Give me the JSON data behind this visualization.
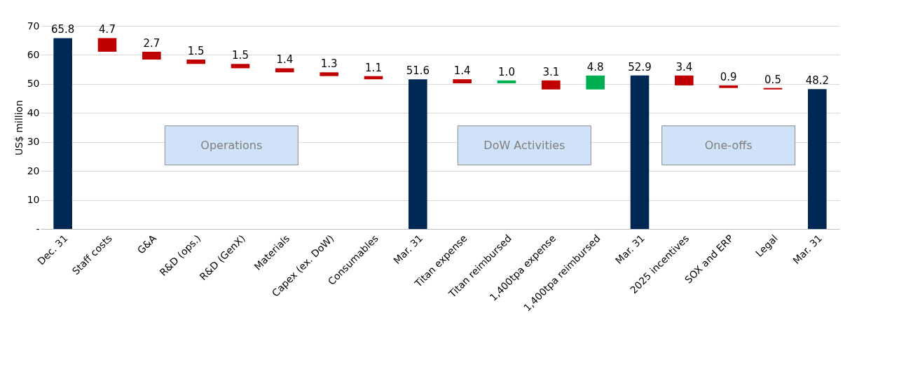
{
  "chart_data": {
    "type": "bar",
    "ylabel": "US$ million",
    "categories": [
      "Dec. 31",
      "Staff costs",
      "G&A",
      "R&D (ops.)",
      "R&D (GenX)",
      "Materials",
      "Capex (ex. DoW)",
      "Consumables",
      "Mar. 31",
      "Titan expense",
      "Titan reimbursed",
      "1,400tpa expense",
      "1,400tpa reimbursed",
      "Mar. 31",
      "2025 incentives",
      "SOX and ERP",
      "Legal",
      "Mar. 31"
    ],
    "values": [
      65.8,
      4.7,
      2.7,
      1.5,
      1.5,
      1.4,
      1.3,
      1.1,
      51.6,
      1.4,
      1.0,
      3.1,
      4.8,
      52.9,
      3.4,
      0.9,
      0.5,
      48.2
    ],
    "base": [
      0,
      61.1,
      58.4,
      56.9,
      55.4,
      54.0,
      52.7,
      51.6,
      0,
      50.2,
      50.2,
      48.1,
      48.1,
      0,
      49.5,
      48.6,
      48.1,
      0
    ],
    "colors": [
      "#002855",
      "#c00000",
      "#c00000",
      "#c00000",
      "#c00000",
      "#c00000",
      "#c00000",
      "#c00000",
      "#002855",
      "#c00000",
      "#00b050",
      "#c00000",
      "#00b050",
      "#002855",
      "#c00000",
      "#c00000",
      "#c00000",
      "#002855"
    ],
    "value_labels": [
      "65.8",
      "4.7",
      "2.7",
      "1.5",
      "1.5",
      "1.4",
      "1.3",
      "1.1",
      "51.6",
      "1.4",
      "1.0",
      "3.1",
      "4.8",
      "52.9",
      "3.4",
      "0.9",
      "0.5",
      "48.2"
    ],
    "ylim": [
      0,
      70
    ],
    "yticks": [
      {
        "value": 0,
        "label": "-"
      },
      10,
      20,
      30,
      40,
      50,
      60,
      70
    ],
    "grid": "y",
    "annotations": [
      "Operations",
      "DoW Activities",
      "One-offs"
    ]
  }
}
